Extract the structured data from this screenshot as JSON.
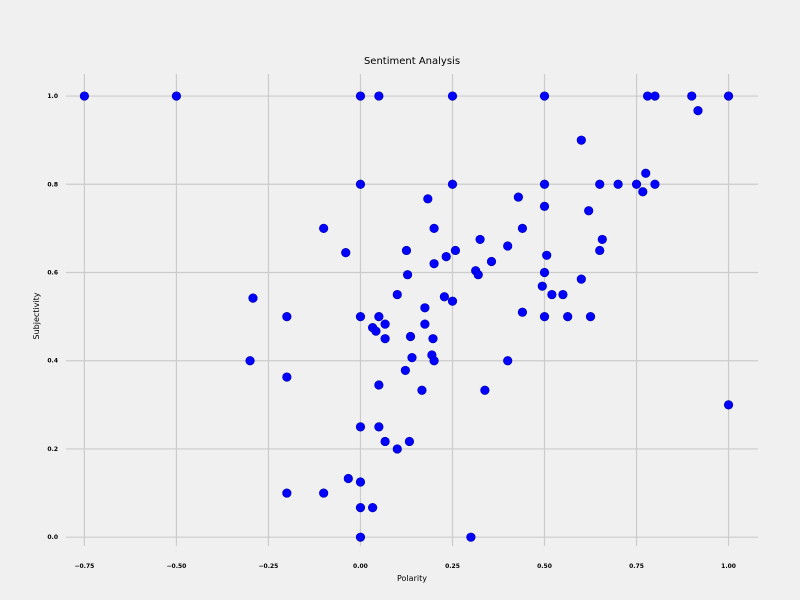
{
  "chart_data": {
    "type": "scatter",
    "title": "Sentiment Analysis",
    "xlabel": "Polarity",
    "ylabel": "Subjectivity",
    "xlim": [
      -0.8,
      1.08
    ],
    "ylim": [
      -0.02,
      1.05
    ],
    "grid": true,
    "color": "#0000ff",
    "x_ticks": [
      -0.75,
      -0.5,
      -0.25,
      0.0,
      0.25,
      0.5,
      0.75,
      1.0
    ],
    "x_tick_labels": [
      "−0.75",
      "−0.50",
      "−0.25",
      "0.00",
      "0.25",
      "0.50",
      "0.75",
      "1.00"
    ],
    "y_ticks": [
      0.0,
      0.2,
      0.4,
      0.6,
      0.8,
      1.0
    ],
    "y_tick_labels": [
      "0.0",
      "0.2",
      "0.4",
      "0.6",
      "0.8",
      "1.0"
    ],
    "points": [
      {
        "x": -0.75,
        "y": 1.0
      },
      {
        "x": -0.5,
        "y": 1.0
      },
      {
        "x": 0.0,
        "y": 1.0
      },
      {
        "x": 0.05,
        "y": 1.0
      },
      {
        "x": 0.25,
        "y": 1.0
      },
      {
        "x": 0.5,
        "y": 1.0
      },
      {
        "x": 0.78,
        "y": 1.0
      },
      {
        "x": 0.8,
        "y": 1.0
      },
      {
        "x": 0.9,
        "y": 1.0
      },
      {
        "x": 1.0,
        "y": 1.0
      },
      {
        "x": 0.917,
        "y": 0.967
      },
      {
        "x": 0.6,
        "y": 0.9
      },
      {
        "x": 0.0,
        "y": 0.8
      },
      {
        "x": 0.25,
        "y": 0.8
      },
      {
        "x": 0.5,
        "y": 0.8
      },
      {
        "x": 0.65,
        "y": 0.8
      },
      {
        "x": 0.7,
        "y": 0.8
      },
      {
        "x": 0.75,
        "y": 0.8
      },
      {
        "x": 0.8,
        "y": 0.8
      },
      {
        "x": 0.775,
        "y": 0.825
      },
      {
        "x": 0.767,
        "y": 0.783
      },
      {
        "x": 0.183,
        "y": 0.767
      },
      {
        "x": 0.429,
        "y": 0.771
      },
      {
        "x": 0.5,
        "y": 0.75
      },
      {
        "x": 0.62,
        "y": 0.74
      },
      {
        "x": -0.1,
        "y": 0.7
      },
      {
        "x": 0.2,
        "y": 0.7
      },
      {
        "x": 0.44,
        "y": 0.7
      },
      {
        "x": 0.325,
        "y": 0.675
      },
      {
        "x": 0.657,
        "y": 0.675
      },
      {
        "x": 0.4,
        "y": 0.66
      },
      {
        "x": -0.04,
        "y": 0.645
      },
      {
        "x": 0.125,
        "y": 0.65
      },
      {
        "x": 0.258,
        "y": 0.65
      },
      {
        "x": 0.65,
        "y": 0.65
      },
      {
        "x": 0.233,
        "y": 0.636
      },
      {
        "x": 0.506,
        "y": 0.639
      },
      {
        "x": 0.2,
        "y": 0.62
      },
      {
        "x": 0.356,
        "y": 0.625
      },
      {
        "x": 0.313,
        "y": 0.604
      },
      {
        "x": 0.32,
        "y": 0.595
      },
      {
        "x": 0.128,
        "y": 0.595
      },
      {
        "x": 0.5,
        "y": 0.6
      },
      {
        "x": 0.6,
        "y": 0.585
      },
      {
        "x": 0.494,
        "y": 0.569
      },
      {
        "x": -0.292,
        "y": 0.542
      },
      {
        "x": 0.1,
        "y": 0.55
      },
      {
        "x": 0.228,
        "y": 0.545
      },
      {
        "x": 0.25,
        "y": 0.535
      },
      {
        "x": 0.52,
        "y": 0.55
      },
      {
        "x": 0.55,
        "y": 0.55
      },
      {
        "x": 0.175,
        "y": 0.52
      },
      {
        "x": 0.44,
        "y": 0.51
      },
      {
        "x": -0.2,
        "y": 0.5
      },
      {
        "x": 0.0,
        "y": 0.5
      },
      {
        "x": 0.05,
        "y": 0.5
      },
      {
        "x": 0.5,
        "y": 0.5
      },
      {
        "x": 0.563,
        "y": 0.5
      },
      {
        "x": 0.625,
        "y": 0.5
      },
      {
        "x": 0.067,
        "y": 0.483
      },
      {
        "x": 0.175,
        "y": 0.483
      },
      {
        "x": 0.033,
        "y": 0.475
      },
      {
        "x": 0.042,
        "y": 0.467
      },
      {
        "x": 0.136,
        "y": 0.455
      },
      {
        "x": 0.067,
        "y": 0.45
      },
      {
        "x": 0.197,
        "y": 0.45
      },
      {
        "x": 0.194,
        "y": 0.413
      },
      {
        "x": 0.14,
        "y": 0.407
      },
      {
        "x": 0.2,
        "y": 0.4
      },
      {
        "x": -0.3,
        "y": 0.4
      },
      {
        "x": 0.4,
        "y": 0.4
      },
      {
        "x": 0.122,
        "y": 0.378
      },
      {
        "x": -0.2,
        "y": 0.363
      },
      {
        "x": 0.05,
        "y": 0.345
      },
      {
        "x": 0.167,
        "y": 0.333
      },
      {
        "x": 0.338,
        "y": 0.333
      },
      {
        "x": 1.0,
        "y": 0.3
      },
      {
        "x": 0.0,
        "y": 0.25
      },
      {
        "x": 0.05,
        "y": 0.25
      },
      {
        "x": 0.067,
        "y": 0.217
      },
      {
        "x": 0.133,
        "y": 0.217
      },
      {
        "x": 0.1,
        "y": 0.2
      },
      {
        "x": -0.033,
        "y": 0.133
      },
      {
        "x": 0.0,
        "y": 0.125
      },
      {
        "x": -0.2,
        "y": 0.1
      },
      {
        "x": -0.1,
        "y": 0.1
      },
      {
        "x": 0.0,
        "y": 0.067
      },
      {
        "x": 0.033,
        "y": 0.067
      },
      {
        "x": 0.0,
        "y": 0.0
      },
      {
        "x": 0.3,
        "y": 0.0
      }
    ]
  }
}
